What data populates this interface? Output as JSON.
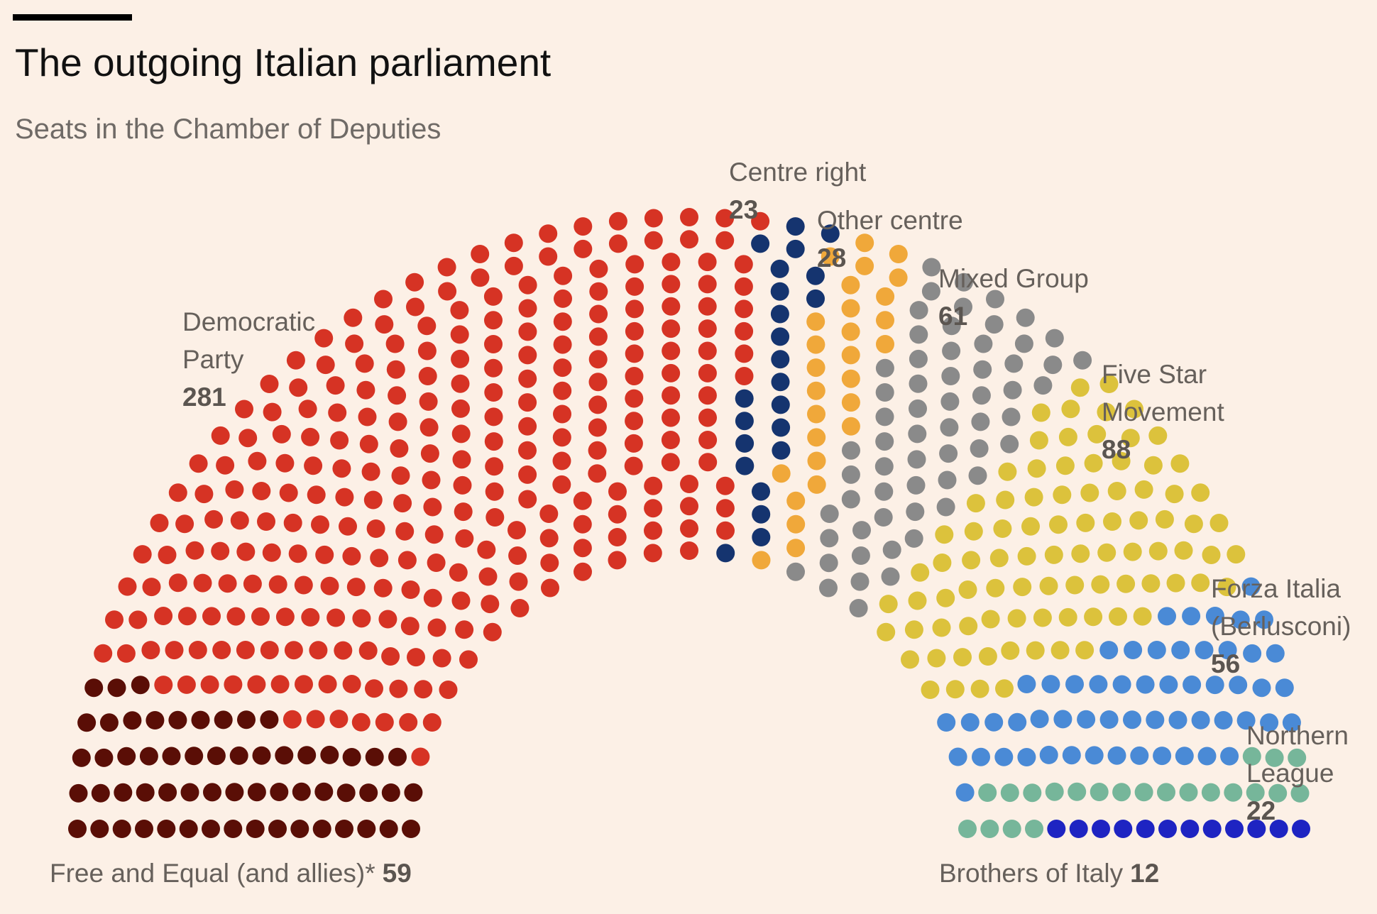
{
  "title": "The outgoing Italian parliament",
  "subtitle": "Seats in the Chamber of Deputies",
  "chart_data": {
    "type": "parliament",
    "total_seats": 630,
    "parties": [
      {
        "name": "Free and Equal (and allies)*",
        "seats": 59,
        "color": "#5A0E06"
      },
      {
        "name": "Democratic Party",
        "seats": 281,
        "color": "#D63324"
      },
      {
        "name": "Centre right",
        "seats": 23,
        "color": "#15346F"
      },
      {
        "name": "Other centre",
        "seats": 28,
        "color": "#F0A83A"
      },
      {
        "name": "Mixed Group",
        "seats": 61,
        "color": "#8A8A8A"
      },
      {
        "name": "Five Star Movement",
        "seats": 88,
        "color": "#DCC23C"
      },
      {
        "name": "Forza Italia (Berlusconi)",
        "seats": 56,
        "color": "#4A8AD6"
      },
      {
        "name": "Northern League",
        "seats": 22,
        "color": "#76B69A"
      },
      {
        "name": "Brothers of Italy",
        "seats": 12,
        "color": "#1E24C2"
      }
    ]
  },
  "labels": {
    "democratic": {
      "lines": [
        "Democratic",
        "Party"
      ],
      "value": "281"
    },
    "centre_right": {
      "lines": [
        "Centre right"
      ],
      "value": "23"
    },
    "other_centre": {
      "lines": [
        "Other centre"
      ],
      "value": "28"
    },
    "mixed": {
      "lines": [
        "Mixed Group"
      ],
      "value": "61"
    },
    "five_star": {
      "lines": [
        "Five Star",
        "Movement"
      ],
      "value": "88"
    },
    "forza": {
      "lines": [
        "Forza Italia",
        "(Berlusconi)"
      ],
      "value": "56"
    },
    "league": {
      "lines": [
        "Northern",
        "League"
      ],
      "value": "22"
    },
    "free_equal": {
      "text": "Free and Equal (and allies)*",
      "value": "59"
    },
    "brothers": {
      "text": "Brothers of Italy",
      "value": "12"
    }
  }
}
